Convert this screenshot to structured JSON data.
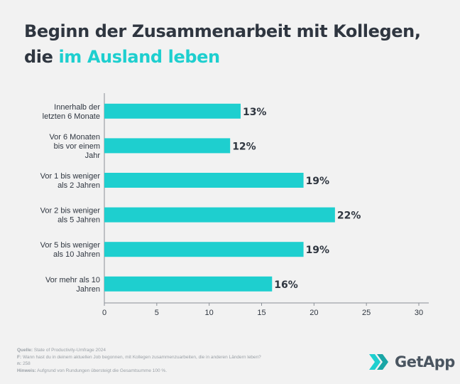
{
  "title": {
    "line1": "Beginn der Zusammenarbeit mit Kollegen,",
    "line2_plain": "die ",
    "line2_highlight": "im Ausland leben"
  },
  "colors": {
    "bar": "#1ecfcf",
    "text": "#2f3640",
    "axis": "#8a8f96",
    "footer": "#9aa0a6"
  },
  "chart_data": {
    "type": "bar",
    "orientation": "horizontal",
    "categories": [
      [
        "Innerhalb der",
        "letzten 6 Monate"
      ],
      [
        "Vor 6 Monaten",
        "bis vor einem",
        "Jahr"
      ],
      [
        "Vor 1 bis weniger",
        "als 2 Jahren"
      ],
      [
        "Vor 2 bis weniger",
        "als 5 Jahren"
      ],
      [
        "Vor 5 bis weniger",
        "als 10 Jahren"
      ],
      [
        "Vor mehr als 10",
        "Jahren"
      ]
    ],
    "values": [
      13,
      12,
      19,
      22,
      19,
      16
    ],
    "value_labels": [
      "13%",
      "12%",
      "19%",
      "22%",
      "19%",
      "16%"
    ],
    "xlim": [
      0,
      30
    ],
    "xticks": [
      0,
      5,
      10,
      15,
      20,
      25,
      30
    ],
    "grid": false
  },
  "footer": {
    "source_label": "Quelle:",
    "source_text": " State of Productivity-Umfrage 2024",
    "question_label": "F:",
    "question_text": " Wann hast du in deinem aktuellen Job begonnen, mit Kollegen zusammenzuarbeiten, die in anderen Ländern leben?",
    "n_label": "n:",
    "n_text": " 258",
    "note_label": "Hinweis:",
    "note_text": " Aufgrund von Rundungen übersteigt die Gesamtsumme 100 %."
  },
  "logo": {
    "text": "GetApp",
    "icon": "getapp-chevrons-icon"
  }
}
